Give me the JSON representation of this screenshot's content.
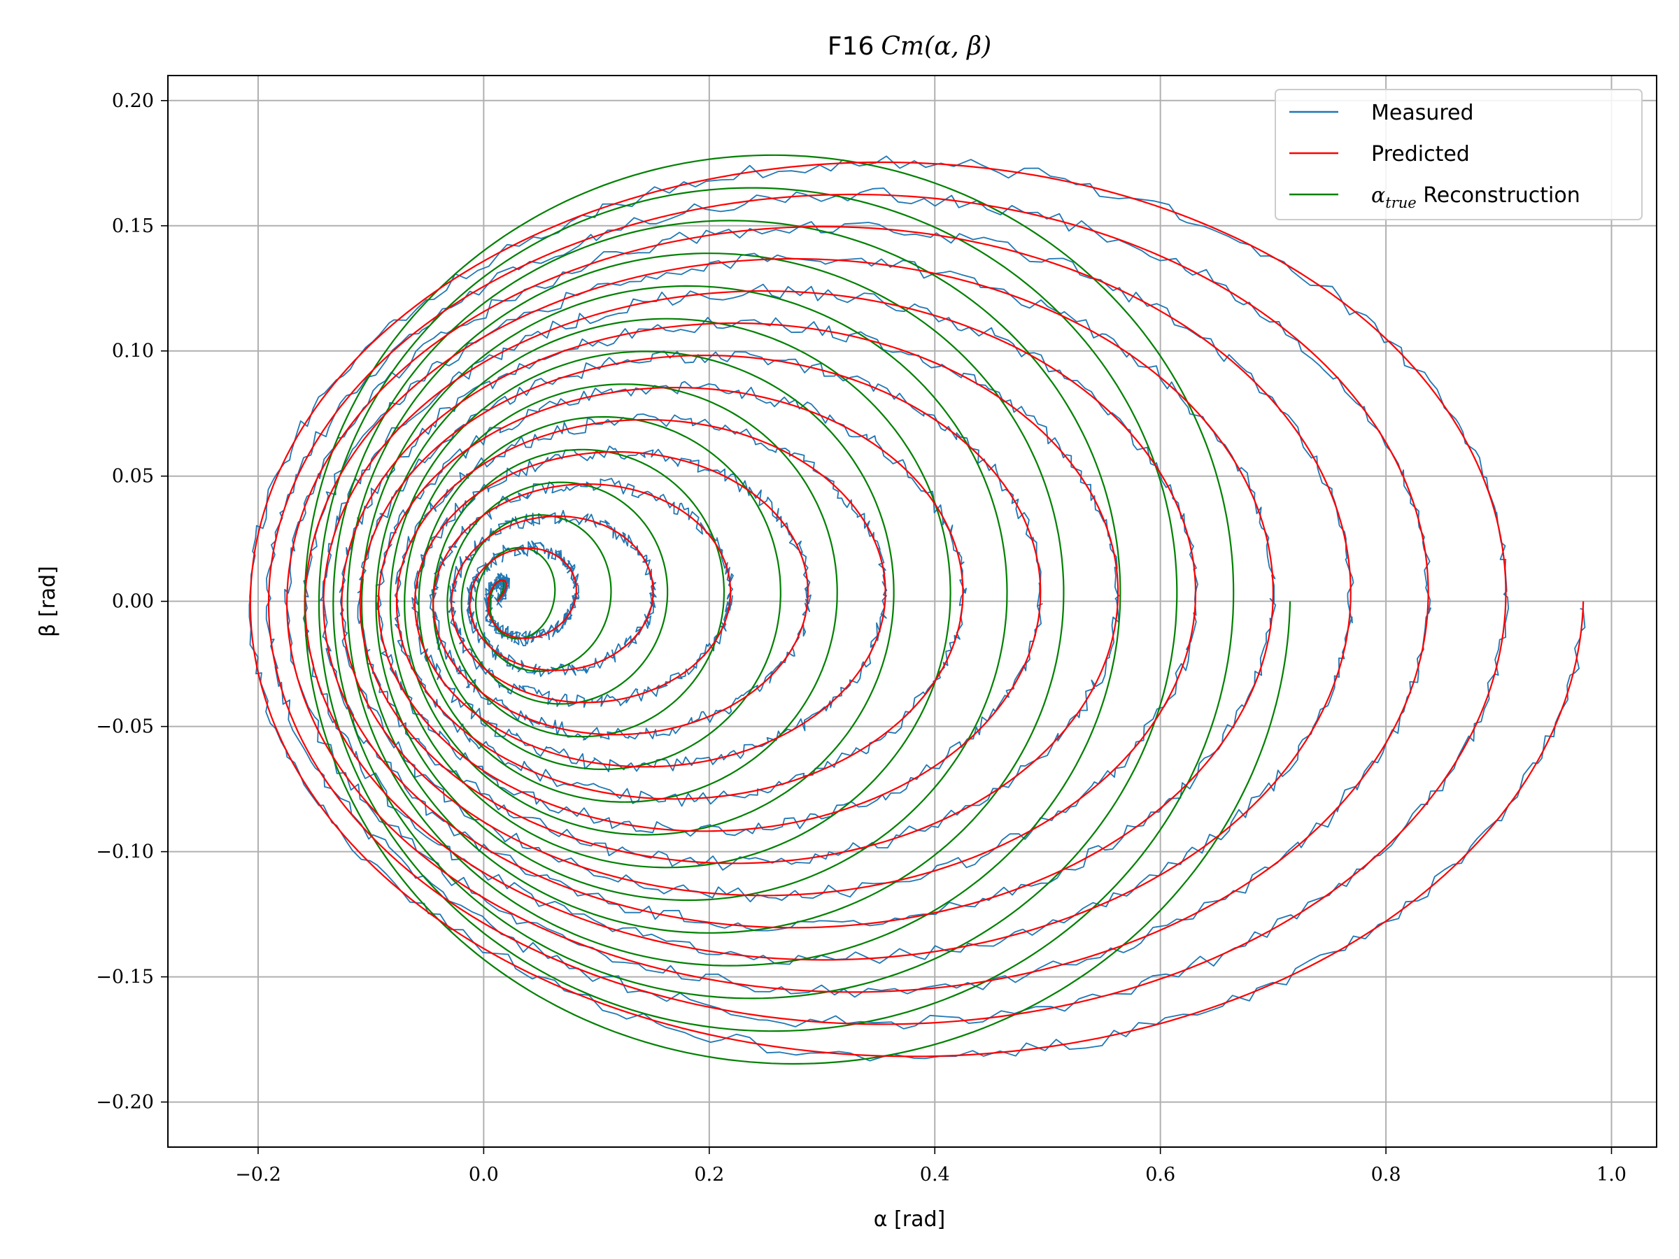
{
  "chart_data": {
    "type": "line",
    "title": "F16 Cm(α, β)",
    "title_prefix": "F16",
    "title_math": "Cm(α, β)",
    "xlabel": "α [rad]",
    "ylabel": "β [rad]",
    "xlim": [
      -0.28,
      1.04
    ],
    "ylim": [
      -0.218,
      0.21
    ],
    "xticks": [
      -0.2,
      0.0,
      0.2,
      0.4,
      0.6,
      0.8,
      1.0
    ],
    "xtick_labels": [
      "−0.2",
      "0.0",
      "0.2",
      "0.4",
      "0.6",
      "0.8",
      "1.0"
    ],
    "yticks": [
      -0.2,
      -0.15,
      -0.1,
      -0.05,
      0.0,
      0.05,
      0.1,
      0.15,
      0.2
    ],
    "ytick_labels": [
      "−0.20",
      "−0.15",
      "−0.10",
      "−0.05",
      "0.00",
      "0.05",
      "0.10",
      "0.15",
      "0.20"
    ],
    "grid": true,
    "legend_position": "top-right",
    "series": [
      {
        "name": "Measured",
        "color": "#1f77b4",
        "description": "noisy spiral trajectory",
        "alpha_min": [
          -0.215,
          0.012
        ],
        "alpha_max": [
          0.975,
          0.012
        ],
        "beta_amplitude": [
          0.185,
          0.005
        ],
        "revolutions": 14
      },
      {
        "name": "Predicted",
        "color": "#ff0000",
        "alpha_min": [
          -0.215,
          0.012
        ],
        "alpha_max": [
          0.975,
          0.012
        ],
        "beta_amplitude": [
          0.185,
          0.005
        ],
        "revolutions": 14
      },
      {
        "name": "α_true Reconstruction",
        "legend_math": "α",
        "legend_sub": "true",
        "legend_rest": " Reconstruction",
        "color": "#008000",
        "alpha_min": [
          -0.165,
          0.012
        ],
        "alpha_max": [
          0.715,
          0.012
        ],
        "beta_amplitude": [
          0.188,
          0.005
        ],
        "revolutions": 14
      }
    ]
  }
}
